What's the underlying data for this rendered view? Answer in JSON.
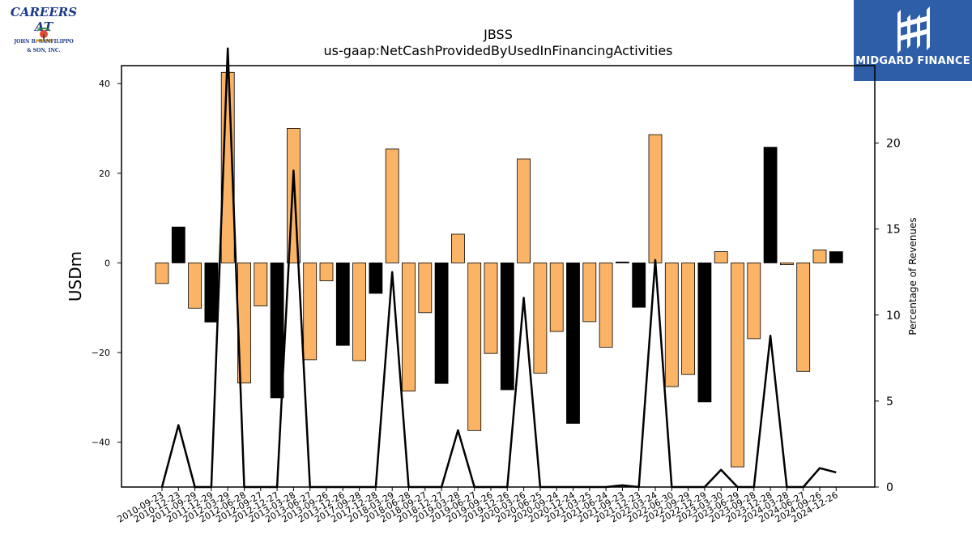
{
  "title": "JBSS",
  "subtitle": "us-gaap:NetCashProvidedByUsedInFinancingActivities",
  "logos": {
    "left_line1": "CAREERS AT",
    "left_line2": "JOHN B. SANFILIPPO",
    "left_line3": "& SON, INC.",
    "right_brand": "MIDGARD FINANCE"
  },
  "colors": {
    "bar_orange": "#fbb466",
    "bar_black": "#000000",
    "line": "#000000",
    "right_logo_bg": "#2f5ea8"
  },
  "chart_data": {
    "type": "bar",
    "ylabel": "USDm",
    "y2label": "Percentage of Revenues",
    "ylim": [
      -50,
      44
    ],
    "y2lim": [
      0,
      24.5
    ],
    "yticks": [
      40,
      20,
      0,
      -20,
      -40
    ],
    "yticklabels": [
      "40",
      "20",
      "0",
      "−20",
      "−40"
    ],
    "y2ticks": [
      0,
      5,
      10,
      15,
      20
    ],
    "y2ticklabels": [
      "0",
      "5",
      "10",
      "15",
      "20"
    ],
    "grid": false,
    "categories": [
      "2010-09-23",
      "2010-12-23",
      "2011-09-29",
      "2011-12-29",
      "2012-03-29",
      "2012-06-28",
      "2012-09-27",
      "2012-12-27",
      "2013-03-28",
      "2013-06-27",
      "2013-09-26",
      "2013-12-26",
      "2017-09-28",
      "2017-12-28",
      "2018-03-29",
      "2018-06-28",
      "2018-09-27",
      "2018-12-27",
      "2019-03-28",
      "2019-06-27",
      "2019-09-26",
      "2019-12-26",
      "2020-03-26",
      "2020-06-25",
      "2020-09-24",
      "2020-12-24",
      "2021-03-25",
      "2021-06-24",
      "2021-09-23",
      "2021-12-23",
      "2022-03-24",
      "2022-06-30",
      "2022-09-29",
      "2022-12-29",
      "2023-03-30",
      "2023-06-29",
      "2023-09-28",
      "2023-12-28",
      "2024-03-28",
      "2024-06-27",
      "2024-09-26",
      "2024-12-26"
    ],
    "values": [
      -4.6,
      8.0,
      -10.1,
      -13.2,
      42.5,
      -26.8,
      -9.6,
      -30.1,
      30.0,
      -21.6,
      -4.0,
      -18.4,
      -21.8,
      -6.8,
      25.4,
      -28.6,
      -11.1,
      -26.9,
      6.4,
      -37.4,
      -20.2,
      -28.3,
      23.2,
      -24.6,
      -15.3,
      -35.8,
      -13.1,
      -18.8,
      0.2,
      -9.9,
      28.6,
      -27.6,
      -24.9,
      -31.0,
      2.5,
      -45.5,
      -16.9,
      25.8,
      -0.4,
      -24.2,
      2.9,
      2.5
    ],
    "bar_colors": [
      "orange",
      "black",
      "orange",
      "black",
      "orange",
      "orange",
      "orange",
      "black",
      "orange",
      "orange",
      "orange",
      "black",
      "orange",
      "black",
      "orange",
      "orange",
      "orange",
      "black",
      "orange",
      "orange",
      "orange",
      "black",
      "orange",
      "orange",
      "orange",
      "black",
      "orange",
      "orange",
      "black",
      "black",
      "orange",
      "orange",
      "orange",
      "black",
      "orange",
      "orange",
      "orange",
      "black",
      "orange",
      "orange",
      "orange",
      "black"
    ],
    "line_values": [
      0,
      3.6,
      0,
      0,
      25.5,
      0,
      0,
      0,
      18.4,
      0,
      0,
      0,
      0,
      0,
      12.5,
      0,
      0,
      0,
      3.3,
      0,
      0,
      0,
      11.0,
      0,
      0,
      0,
      0,
      0,
      0.1,
      0,
      13.2,
      0,
      0,
      0,
      1.0,
      0,
      0,
      8.8,
      0,
      0,
      1.1,
      0.85
    ]
  }
}
